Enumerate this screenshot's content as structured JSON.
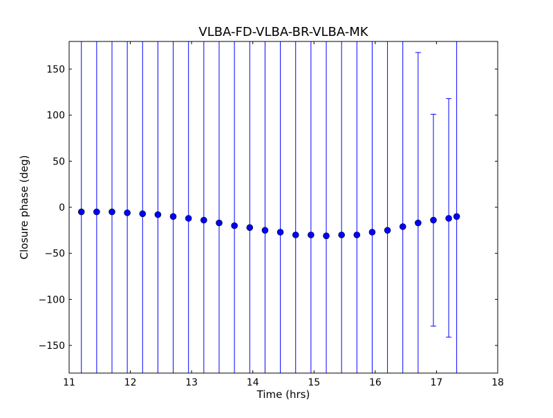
{
  "chart_data": {
    "type": "scatter",
    "title": "VLBA-FD-VLBA-BR-VLBA-MK",
    "xlabel": "Time (hrs)",
    "ylabel": "Closure phase (deg)",
    "xlim": [
      11,
      18
    ],
    "ylim": [
      -180,
      180
    ],
    "xticks": [
      11,
      12,
      13,
      14,
      15,
      16,
      17,
      18
    ],
    "xtick_labels": [
      "11",
      "12",
      "13",
      "14",
      "15",
      "16",
      "17",
      "18"
    ],
    "yticks": [
      -150,
      -100,
      -50,
      0,
      50,
      100,
      150
    ],
    "ytick_labels": [
      "−150",
      "−100",
      "−50",
      "0",
      "50",
      "100",
      "150"
    ],
    "grid": false,
    "marker_color": "#0000ff",
    "errorbar_color": "#0000ff",
    "series": [
      {
        "x": [
          11.2,
          11.45,
          11.7,
          11.95,
          12.2,
          12.45,
          12.7,
          12.95,
          13.2,
          13.45,
          13.7,
          13.95,
          14.2,
          14.45,
          14.7,
          14.95,
          15.2,
          15.45,
          15.7,
          15.95,
          16.2,
          16.45,
          16.7,
          16.95,
          17.2,
          17.33
        ],
        "y": [
          -5,
          -5,
          -5,
          -6,
          -7,
          -8,
          -10,
          -12,
          -14,
          -17,
          -20,
          -22,
          -25,
          -27,
          -30,
          -30,
          -31,
          -30,
          -30,
          -27,
          -25,
          -21,
          -17,
          -14,
          -12,
          -10
        ],
        "yerr_low": [
          -180,
          -180,
          -180,
          -180,
          -180,
          -180,
          -180,
          -180,
          -180,
          -180,
          -180,
          -180,
          -180,
          -180,
          -180,
          -180,
          -180,
          -180,
          -180,
          -180,
          -180,
          -180,
          -180,
          -129,
          -141,
          -180
        ],
        "yerr_high": [
          180,
          180,
          180,
          180,
          180,
          180,
          180,
          180,
          180,
          180,
          180,
          180,
          180,
          180,
          180,
          180,
          180,
          180,
          180,
          180,
          180,
          180,
          168,
          101,
          118,
          180
        ]
      }
    ]
  }
}
